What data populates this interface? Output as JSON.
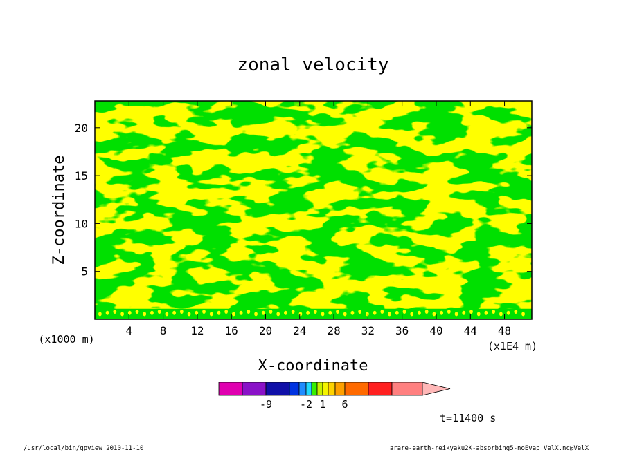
{
  "chart_data": {
    "type": "heatmap",
    "title": "zonal velocity",
    "xlabel": "X-coordinate",
    "ylabel": "Z-coordinate",
    "x_unit": "(x1E4 m)",
    "y_unit": "(x1000 m)",
    "x_ticks": [
      "4",
      "8",
      "12",
      "16",
      "20",
      "24",
      "28",
      "32",
      "36",
      "40",
      "44",
      "48"
    ],
    "y_ticks": [
      "5",
      "10",
      "15",
      "20"
    ],
    "xlim": [
      0,
      51.2
    ],
    "ylim": [
      0,
      22.8
    ],
    "colorbar": {
      "colors": [
        "#e000b0",
        "#8a12c8",
        "#1010a8",
        "#0033e0",
        "#1f8cff",
        "#20d8ff",
        "#38f000",
        "#c8f000",
        "#f4f400",
        "#ffd200",
        "#ffa000",
        "#ff6a00",
        "#ff2020",
        "#ff8080",
        "#ffb8b8"
      ],
      "tick_labels": [
        "-9",
        "-2",
        "1",
        "6"
      ]
    },
    "field_colors": {
      "positive_low": "#ffff00",
      "negative_low": "#00e000"
    },
    "time_label": "t=11400 s"
  },
  "footer": {
    "left": "/usr/local/bin/gpview  2010-11-10",
    "right": "arare-earth-reikyaku2K-absorbing5-noEvap_VelX.nc@VelX"
  }
}
